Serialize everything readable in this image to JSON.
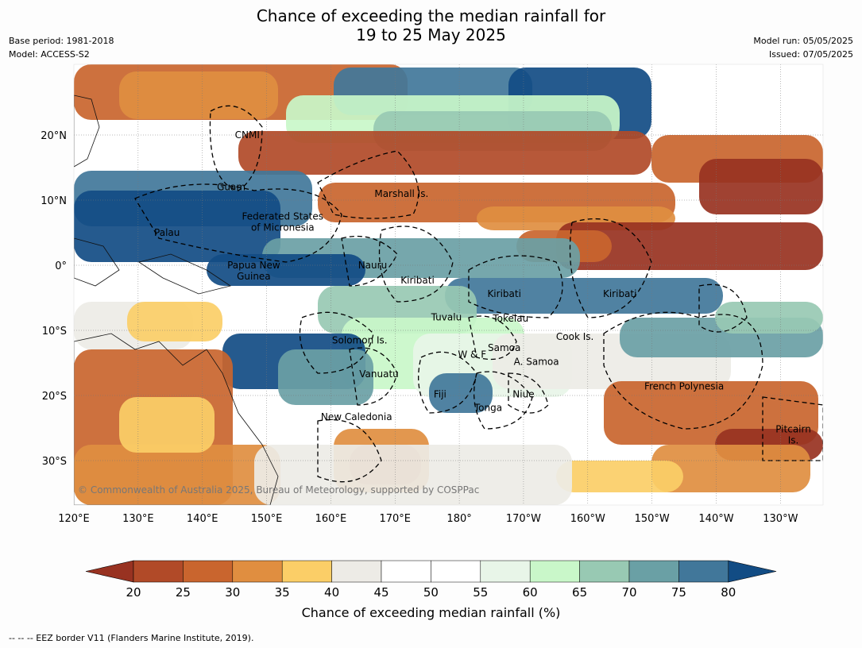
{
  "title_line1": "Chance of exceeding the median rainfall for",
  "title_line2": "19 to 25 May 2025",
  "meta_left": [
    "Base period: 1981-2018",
    "Model: ACCESS-S2"
  ],
  "meta_right": [
    "Model run: 05/05/2025",
    "Issued: 07/05/2025"
  ],
  "lon_labels": [
    "120°E",
    "130°E",
    "140°E",
    "150°E",
    "160°E",
    "170°E",
    "180°",
    "170°W",
    "160°W",
    "150°W",
    "140°W",
    "130°W"
  ],
  "lat_labels": [
    "20°N",
    "10°N",
    "0°",
    "10°S",
    "20°S",
    "30°S"
  ],
  "place_labels": [
    {
      "text": "CNMI",
      "lon": 147,
      "lat": 20
    },
    {
      "text": "Guam",
      "lon": 144.5,
      "lat": 12
    },
    {
      "text": "Marshall Is.",
      "lon": 171,
      "lat": 11
    },
    {
      "text": "Federated States",
      "lon": 152.5,
      "lat": 7.5
    },
    {
      "text": "of Micronesia",
      "lon": 152.5,
      "lat": 5.8
    },
    {
      "text": "Palau",
      "lon": 134.5,
      "lat": 5
    },
    {
      "text": "Papua New",
      "lon": 148,
      "lat": 0
    },
    {
      "text": "Guinea",
      "lon": 148,
      "lat": -1.7
    },
    {
      "text": "Nauru",
      "lon": 166.5,
      "lat": 0
    },
    {
      "text": "Kiribati",
      "lon": 173.5,
      "lat": -2.3
    },
    {
      "text": "Kiribati",
      "lon": 187,
      "lat": -4.4
    },
    {
      "text": "Kiribati",
      "lon": 205,
      "lat": -4.4
    },
    {
      "text": "Tuvalu",
      "lon": 178,
      "lat": -8
    },
    {
      "text": "Tokelau",
      "lon": 188,
      "lat": -8.2
    },
    {
      "text": "Cook Is.",
      "lon": 198,
      "lat": -11
    },
    {
      "text": "Solomon Is.",
      "lon": 164.5,
      "lat": -11.5
    },
    {
      "text": "Samoa",
      "lon": 187,
      "lat": -12.7
    },
    {
      "text": "W & F",
      "lon": 182,
      "lat": -13.7
    },
    {
      "text": "A. Samoa",
      "lon": 192,
      "lat": -14.8
    },
    {
      "text": "Vanuatu",
      "lon": 167.5,
      "lat": -16.7
    },
    {
      "text": "French Polynesia",
      "lon": 215,
      "lat": -18.6
    },
    {
      "text": "Fiji",
      "lon": 177,
      "lat": -19.8
    },
    {
      "text": "Niue",
      "lon": 190,
      "lat": -19.8
    },
    {
      "text": "Tonga",
      "lon": 184.5,
      "lat": -21.9
    },
    {
      "text": "New Caledonia",
      "lon": 164,
      "lat": -23.3
    },
    {
      "text": "Pitcairn",
      "lon": 232,
      "lat": -25.2
    },
    {
      "text": "Is.",
      "lon": 232,
      "lat": -26.9
    }
  ],
  "copyright": "© Commonwealth of Australia 2025, Bureau of Meteorology, supported by COSPPac",
  "colorbar": {
    "ticks": [
      "20",
      "25",
      "30",
      "35",
      "40",
      "45",
      "50",
      "55",
      "60",
      "65",
      "70",
      "75",
      "80"
    ],
    "colors": [
      "#983221",
      "#b14a28",
      "#c9652e",
      "#e08e40",
      "#fbce67",
      "#edebe6",
      "#ffffff",
      "#ffffff",
      "#e8f5e8",
      "#c9f7c9",
      "#98c9b3",
      "#6aa0a5",
      "#41779a",
      "#124c84"
    ],
    "title": "Chance of exceeding median rainfall (%)"
  },
  "footnote": "--  --  -- EEZ border V11 (Flanders Marine Institute, 2019)."
}
